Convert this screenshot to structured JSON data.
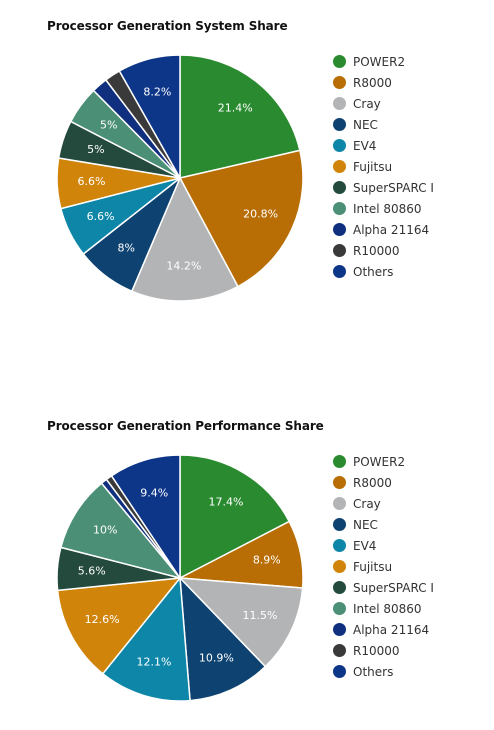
{
  "chart_data": [
    {
      "type": "pie",
      "title": "Processor Generation System Share",
      "categories": [
        "POWER2",
        "R8000",
        "Cray",
        "NEC",
        "EV4",
        "Fujitsu",
        "SuperSPARC I",
        "Intel 80860",
        "Alpha 21164",
        "R10000",
        "Others"
      ],
      "values": [
        21.4,
        20.8,
        14.2,
        8,
        6.6,
        6.6,
        5,
        5,
        2.1,
        2.1,
        8.2
      ],
      "data_labels": [
        "21.4%",
        "20.8%",
        "14.2%",
        "8%",
        "6.6%",
        "6.6%",
        "5%",
        "5%",
        "",
        "",
        "8.2%"
      ],
      "legend": "right"
    },
    {
      "type": "pie",
      "title": "Processor Generation Performance Share",
      "categories": [
        "POWER2",
        "R8000",
        "Cray",
        "NEC",
        "EV4",
        "Fujitsu",
        "SuperSPARC I",
        "Intel 80860",
        "Alpha 21164",
        "R10000",
        "Others"
      ],
      "values": [
        17.4,
        8.9,
        11.5,
        10.9,
        12.1,
        12.6,
        5.6,
        10,
        0.8,
        0.8,
        9.4
      ],
      "data_labels": [
        "17.4%",
        "8.9%",
        "11.5%",
        "10.9%",
        "12.1%",
        "12.6%",
        "5.6%",
        "10%",
        "",
        "",
        "9.4%"
      ],
      "legend": "right"
    }
  ],
  "colors": [
    "#2a8a2f",
    "#b86e05",
    "#b3b4b6",
    "#0d4271",
    "#0d86a8",
    "#d0840a",
    "#234a3d",
    "#4b8f76",
    "#10307f",
    "#3a3a3a",
    "#0d3588"
  ]
}
